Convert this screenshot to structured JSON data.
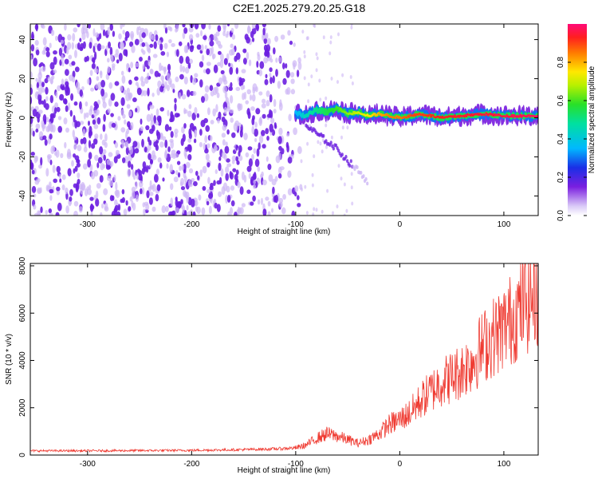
{
  "title": "C2E1.2025.279.20.25.G18",
  "colors": {
    "snr_line": "#ef3b32",
    "point_dark": "#6b1fe0",
    "point_light": "#cdb6f5",
    "axis": "#000000"
  },
  "chart_data": [
    {
      "type": "heatmap",
      "xlabel": "Height of straight line (km)",
      "ylabel": "Frequency (Hz)",
      "xlim": [
        -355,
        133
      ],
      "ylim": [
        -50,
        48
      ],
      "xticks": [
        -300,
        -200,
        -100,
        0,
        100
      ],
      "yticks": [
        -40,
        -20,
        0,
        20,
        40
      ],
      "noise_region_x": [
        -355,
        -95
      ],
      "signal_track": {
        "x": [
          -100,
          -90,
          -80,
          -70,
          -60,
          -50,
          -40,
          -30,
          -20,
          -10,
          0,
          10,
          20,
          30,
          40,
          60,
          80,
          100,
          120,
          133
        ],
        "freq_hz": [
          2,
          1,
          4,
          3,
          5,
          2,
          3,
          1,
          2,
          1,
          0,
          1,
          2,
          1,
          0,
          1,
          2,
          1,
          1,
          1
        ],
        "amplitude": [
          0.35,
          0.45,
          0.5,
          0.55,
          0.6,
          0.65,
          0.7,
          0.75,
          0.8,
          0.85,
          0.85,
          0.9,
          0.9,
          0.92,
          0.93,
          0.94,
          0.95,
          0.96,
          0.97,
          0.98
        ]
      },
      "secondary_track": {
        "x": [
          -90,
          -80,
          -70,
          -60,
          -50,
          -40,
          -30
        ],
        "freq_hz": [
          -4,
          -8,
          -12,
          -16,
          -22,
          -27,
          -33
        ]
      },
      "colorbar": {
        "label": "Normalized spectral amplitude",
        "range": [
          0.0,
          1.0
        ],
        "ticks": [
          "0.0",
          "0.2",
          "0.4",
          "0.6",
          "0.8"
        ]
      }
    },
    {
      "type": "line",
      "xlabel": "Height of straight line (km)",
      "ylabel": "SNR (10 * v/v)",
      "xlim": [
        -355,
        133
      ],
      "ylim": [
        0,
        8100
      ],
      "xticks": [
        -300,
        -200,
        -100,
        0,
        100
      ],
      "yticks": [
        0,
        2000,
        4000,
        6000,
        8000
      ],
      "series": [
        {
          "name": "SNR",
          "x": [
            -355,
            -300,
            -250,
            -200,
            -150,
            -120,
            -100,
            -90,
            -80,
            -70,
            -60,
            -50,
            -40,
            -30,
            -20,
            -10,
            0,
            10,
            20,
            30,
            40,
            50,
            60,
            70,
            80,
            90,
            100,
            110,
            120,
            133
          ],
          "values": [
            180,
            180,
            190,
            200,
            230,
            260,
            300,
            420,
            700,
            900,
            800,
            650,
            500,
            650,
            900,
            1300,
            1500,
            1800,
            2300,
            2700,
            3100,
            3300,
            3600,
            4000,
            4600,
            5000,
            5400,
            5900,
            6400,
            7000
          ]
        }
      ]
    }
  ]
}
